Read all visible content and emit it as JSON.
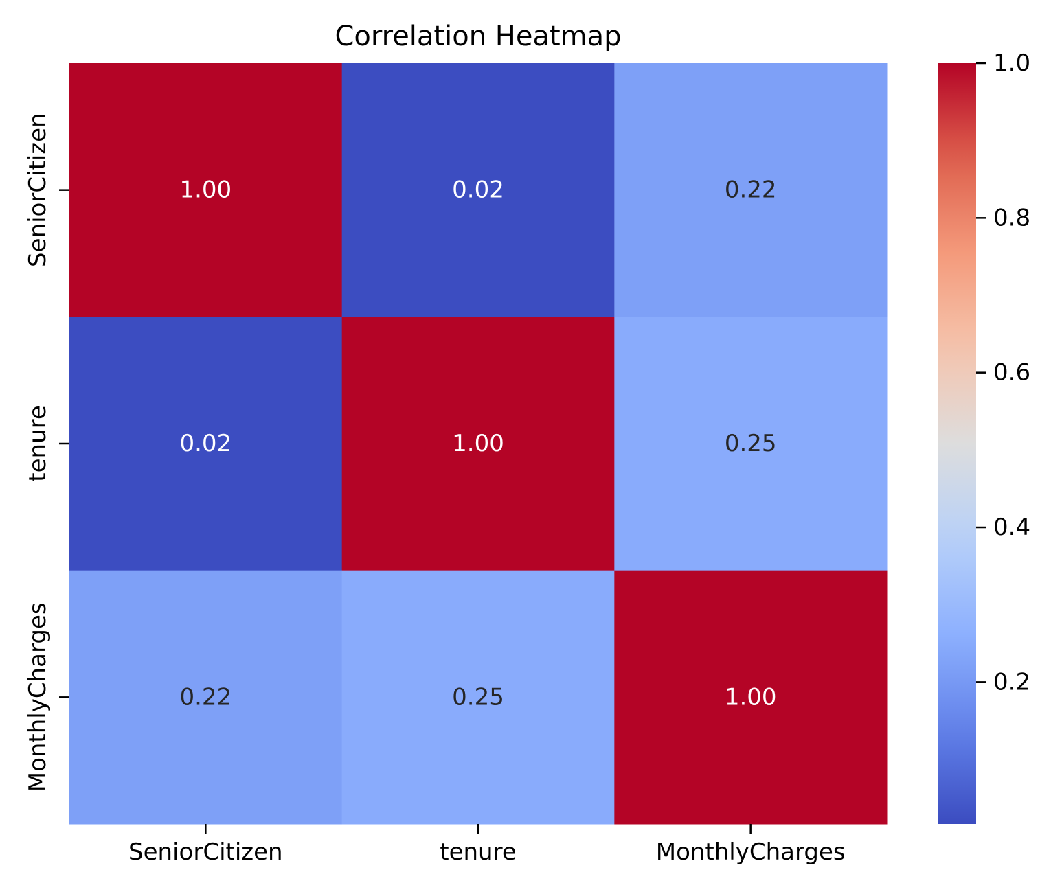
{
  "chart_data": {
    "type": "heatmap",
    "title": "Correlation Heatmap",
    "xlabel": "",
    "ylabel": "",
    "x_categories": [
      "SeniorCitizen",
      "tenure",
      "MonthlyCharges"
    ],
    "y_categories": [
      "SeniorCitizen",
      "tenure",
      "MonthlyCharges"
    ],
    "values": [
      [
        1.0,
        0.02,
        0.22
      ],
      [
        0.02,
        1.0,
        0.25
      ],
      [
        0.22,
        0.25,
        1.0
      ]
    ],
    "annotation_labels": [
      [
        "1.00",
        "0.02",
        "0.22"
      ],
      [
        "0.02",
        "1.00",
        "0.25"
      ],
      [
        "0.22",
        "0.25",
        "1.00"
      ]
    ],
    "colormap": "coolwarm",
    "colorbar": {
      "range": [
        0.0166,
        1.0
      ],
      "ticks": [
        0.2,
        0.4,
        0.6,
        0.8,
        1.0
      ],
      "tick_labels": [
        "0.2",
        "0.4",
        "0.6",
        "0.8",
        "1.0"
      ]
    },
    "grid": false,
    "legend": "colorbar-right"
  }
}
